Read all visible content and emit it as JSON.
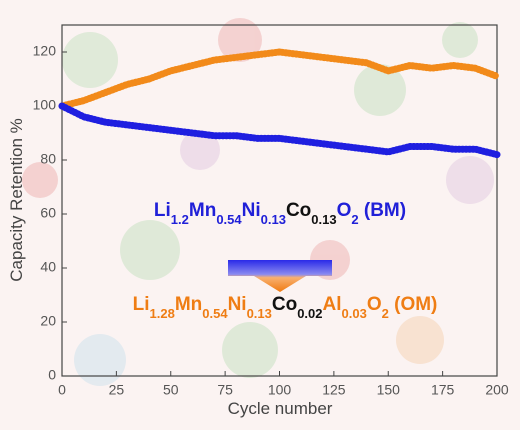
{
  "chart_data": {
    "type": "line",
    "xlabel": "Cycle number",
    "ylabel": "Capacity Retention %",
    "x": [
      0,
      10,
      20,
      30,
      40,
      50,
      60,
      70,
      80,
      90,
      100,
      110,
      120,
      130,
      140,
      150,
      160,
      170,
      180,
      190,
      200
    ],
    "series": [
      {
        "color": "#f28a1a",
        "values": [
          100,
          102,
          105,
          108,
          110,
          113,
          115,
          117,
          118,
          119,
          120,
          119,
          118,
          117,
          116,
          113,
          115,
          114,
          115,
          114,
          111
        ]
      },
      {
        "color": "#1f1fe0",
        "values": [
          100,
          96,
          94,
          93,
          92,
          91,
          90,
          89,
          89,
          88,
          88,
          87,
          86,
          85,
          84,
          83,
          85,
          85,
          84,
          84,
          82
        ]
      }
    ],
    "xlim": [
      0,
      200
    ],
    "ylim": [
      0,
      130
    ],
    "xticks": [
      0,
      25,
      50,
      75,
      100,
      125,
      150,
      175,
      200
    ],
    "yticks": [
      0,
      20,
      40,
      60,
      80,
      100,
      120
    ],
    "annotations": [
      {
        "parts": [
          {
            "text": "Li",
            "color": "#2020d8"
          },
          {
            "text": "1.2",
            "sub": true,
            "color": "#2020d8"
          },
          {
            "text": "Mn",
            "color": "#2020d8"
          },
          {
            "text": "0.54",
            "sub": true,
            "color": "#2020d8"
          },
          {
            "text": "Ni",
            "color": "#2020d8"
          },
          {
            "text": "0.13",
            "sub": true,
            "color": "#2020d8"
          },
          {
            "text": "Co",
            "color": "#111111"
          },
          {
            "text": "0.13",
            "sub": true,
            "color": "#111111"
          },
          {
            "text": "O",
            "color": "#2020d8"
          },
          {
            "text": "2",
            "sub": true,
            "color": "#2020d8"
          },
          {
            "text": " (BM)",
            "color": "#2020d8"
          }
        ]
      },
      {
        "parts": [
          {
            "text": "Li",
            "color": "#ef7d14"
          },
          {
            "text": "1.28",
            "sub": true,
            "color": "#ef7d14"
          },
          {
            "text": "Mn",
            "color": "#ef7d14"
          },
          {
            "text": "0.54",
            "sub": true,
            "color": "#ef7d14"
          },
          {
            "text": "Ni",
            "color": "#ef7d14"
          },
          {
            "text": "0.13",
            "sub": true,
            "color": "#ef7d14"
          },
          {
            "text": "Co",
            "color": "#111111"
          },
          {
            "text": "0.02",
            "sub": true,
            "color": "#111111"
          },
          {
            "text": "Al",
            "color": "#ef7d14"
          },
          {
            "text": "0.03",
            "sub": true,
            "color": "#ef7d14"
          },
          {
            "text": "O",
            "color": "#ef7d14"
          },
          {
            "text": "2",
            "sub": true,
            "color": "#ef7d14"
          },
          {
            "text": "  (OM)",
            "color": "#ef7d14"
          }
        ]
      }
    ]
  }
}
